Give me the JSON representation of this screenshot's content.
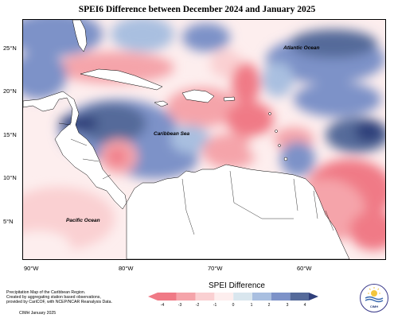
{
  "title": "SPEI6 Difference between December 2024 and January 2025",
  "lat_labels": [
    "25°N",
    "20°N",
    "15°N",
    "10°N",
    "5°N"
  ],
  "lon_labels": [
    "90°W",
    "80°W",
    "70°W",
    "60°W"
  ],
  "places": {
    "atlantic": "Atlantic Ocean",
    "caribbean": "Caribbean Sea",
    "pacific": "Pacific Ocean"
  },
  "notes": {
    "line1": "Precipitation Map of the Caribbean Region.",
    "line2": "Created by aggregating station based observations,",
    "line3": "provided by CariCOF, with NCEP/NCAR Reanalysis Data.",
    "credit": "CIMH January 2025"
  },
  "legend": {
    "title": "SPEI Difference",
    "ticks": [
      "-4",
      "-3",
      "-2",
      "-1",
      "0",
      "1",
      "2",
      "3",
      "4"
    ],
    "colors": [
      "#f07a86",
      "#f5a4aa",
      "#fad0d2",
      "#fdeeee",
      "#d9e6ee",
      "#a9bfe0",
      "#7d92c8",
      "#556a9a",
      "#2f3f7a"
    ]
  },
  "logo": {
    "text": "CIMH"
  }
}
